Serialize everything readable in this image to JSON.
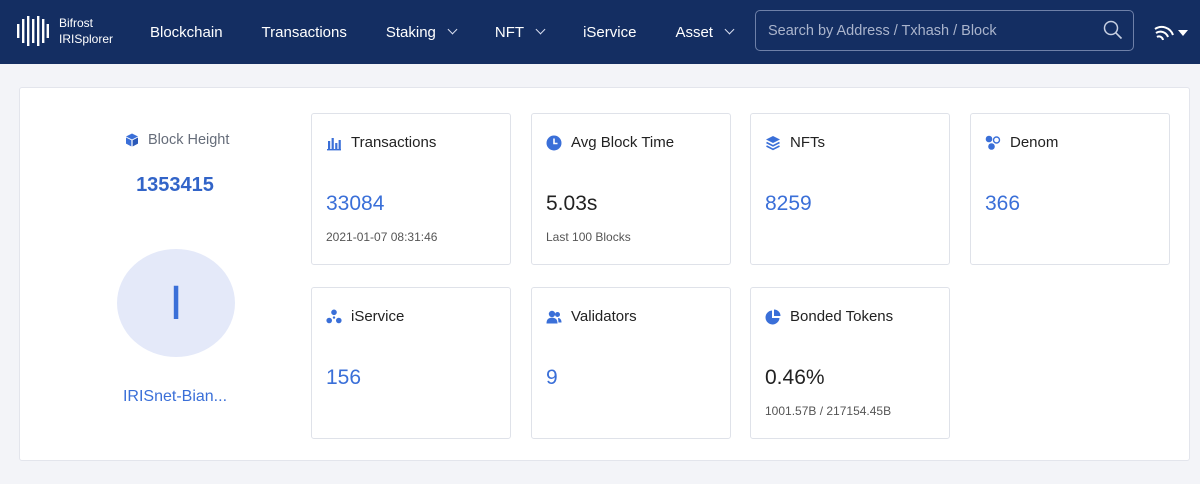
{
  "header": {
    "logo_line1": "Bifrost",
    "logo_line2": "IRISplorer",
    "nav": [
      {
        "label": "Blockchain"
      },
      {
        "label": "Transactions"
      },
      {
        "label": "Staking"
      },
      {
        "label": "NFT"
      },
      {
        "label": "iService"
      },
      {
        "label": "Asset"
      }
    ],
    "search_placeholder": "Search by Address / Txhash / Block"
  },
  "block": {
    "label": "Block Height",
    "value": "1353415",
    "avatar_letter": "I",
    "validator": "IRISnet-Bian..."
  },
  "cards": {
    "transactions": {
      "title": "Transactions",
      "value": "33084",
      "sub": "2021-01-07 08:31:46"
    },
    "avg_block_time": {
      "title": "Avg Block Time",
      "value": "5.03s",
      "sub": "Last 100 Blocks"
    },
    "nfts": {
      "title": "NFTs",
      "value": "8259"
    },
    "denom": {
      "title": "Denom",
      "value": "366"
    },
    "iservice": {
      "title": "iService",
      "value": "156"
    },
    "validators": {
      "title": "Validators",
      "value": "9"
    },
    "bonded_tokens": {
      "title": "Bonded Tokens",
      "value": "0.46%",
      "sub": "1001.57B / 217154.45B"
    }
  },
  "colors": {
    "header_bg": "#142e62",
    "accent": "#3a6fd8"
  }
}
